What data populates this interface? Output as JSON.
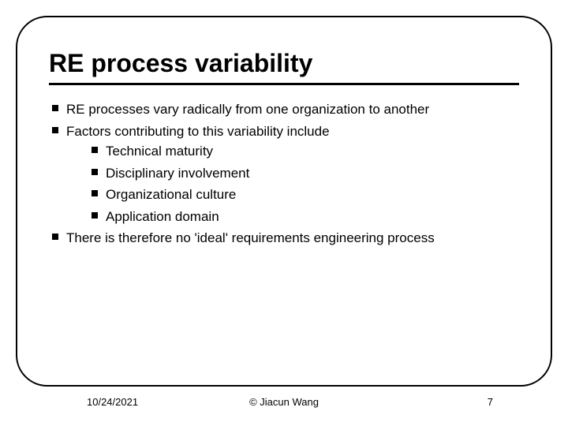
{
  "slide": {
    "title": "RE process variability",
    "bullets": [
      "RE processes vary radically from one organization to another",
      "Factors contributing to this variability include",
      "There is therefore no 'ideal' requirements engineering process"
    ],
    "nested_bullets": [
      "Technical maturity",
      "Disciplinary involvement",
      "Organizational culture",
      "Application domain"
    ],
    "footer": {
      "date": "10/24/2021",
      "author": "© Jiacun Wang",
      "page": "7"
    },
    "style": {
      "background_color": "#ffffff",
      "border_color": "#000000",
      "border_width": 2.5,
      "border_radius": 40,
      "title_fontsize": 32,
      "body_fontsize": 17,
      "footer_fontsize": 13,
      "bullet_shape": "square",
      "bullet_color": "#000000",
      "text_color": "#000000",
      "title_underline_width": 3
    }
  }
}
